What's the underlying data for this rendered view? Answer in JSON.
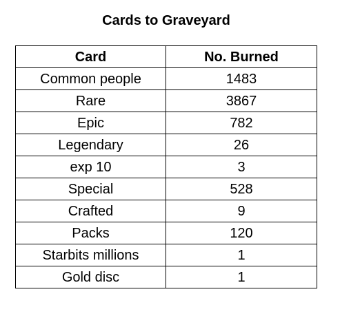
{
  "title": "Cards to Graveyard",
  "table": {
    "headers": [
      "Card",
      "No. Burned"
    ],
    "rows": [
      [
        "Common people",
        "1483"
      ],
      [
        "Rare",
        "3867"
      ],
      [
        "Epic",
        "782"
      ],
      [
        "Legendary",
        "26"
      ],
      [
        "exp 10",
        "3"
      ],
      [
        "Special",
        "528"
      ],
      [
        "Crafted",
        "9"
      ],
      [
        "Packs",
        "120"
      ],
      [
        "Starbits millions",
        "1"
      ],
      [
        "Gold disc",
        "1"
      ]
    ]
  }
}
